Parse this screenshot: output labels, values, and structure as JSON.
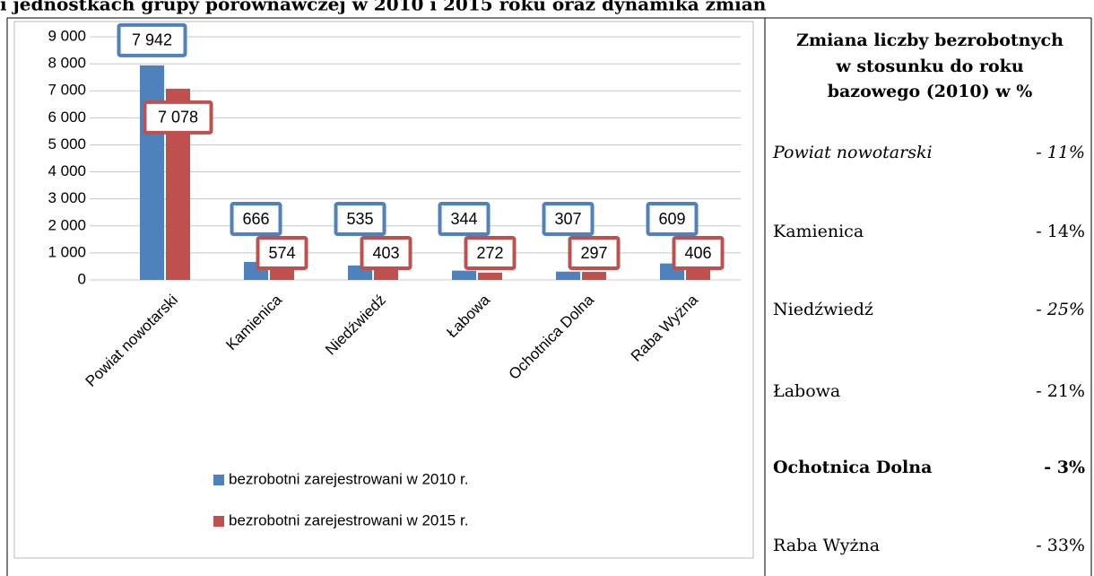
{
  "title": "i jednostkach grupy porównawczej w 2010 i 2015 roku oraz dynamika zmian",
  "chart_data": {
    "type": "bar",
    "categories": [
      "Powiat nowotarski",
      "Kamienica",
      "Niedźwiedź",
      "Łabowa",
      "Ochotnica Dolna",
      "Raba Wyżna"
    ],
    "series": [
      {
        "name": "bezrobotni zarejestrowani w 2010 r.",
        "color": "#4f81bd",
        "values": [
          7942,
          666,
          535,
          344,
          307,
          609
        ],
        "value_labels": [
          "7 942",
          "666",
          "535",
          "344",
          "307",
          "609"
        ]
      },
      {
        "name": "bezrobotni zarejestrowani w 2015 r.",
        "color": "#c0504d",
        "values": [
          7078,
          574,
          403,
          272,
          297,
          406
        ],
        "value_labels": [
          "7 078",
          "574",
          "403",
          "272",
          "297",
          "406"
        ]
      }
    ],
    "ylim": [
      0,
      9000
    ],
    "yticks": [
      0,
      {
        "value": 1000,
        "label": "1 000"
      },
      {
        "value": 2000,
        "label": "2 000"
      },
      {
        "value": 3000,
        "label": "3 000"
      },
      {
        "value": 4000,
        "label": "4 000"
      },
      {
        "value": 5000,
        "label": "5 000"
      },
      {
        "value": 6000,
        "label": "6 000"
      },
      {
        "value": 7000,
        "label": "7 000"
      },
      {
        "value": 8000,
        "label": "8 000"
      },
      {
        "value": 9000,
        "label": "9 000"
      }
    ],
    "grid": true,
    "legend": "bottom"
  },
  "table": {
    "header": [
      "Zmiana liczby bezrobotnych",
      "w stosunku do roku",
      "bazowego (2010) w %"
    ],
    "rows": [
      [
        "Powiat nowotarski",
        "- 11%"
      ],
      [
        "Kamienica",
        "- 14%"
      ],
      [
        "Niedźwiedź",
        "- 25%"
      ],
      [
        "Łabowa",
        "- 21%"
      ],
      [
        "Ochotnica Dolna",
        "- 3%"
      ],
      [
        "Raba Wyżna",
        "- 33%"
      ]
    ]
  }
}
